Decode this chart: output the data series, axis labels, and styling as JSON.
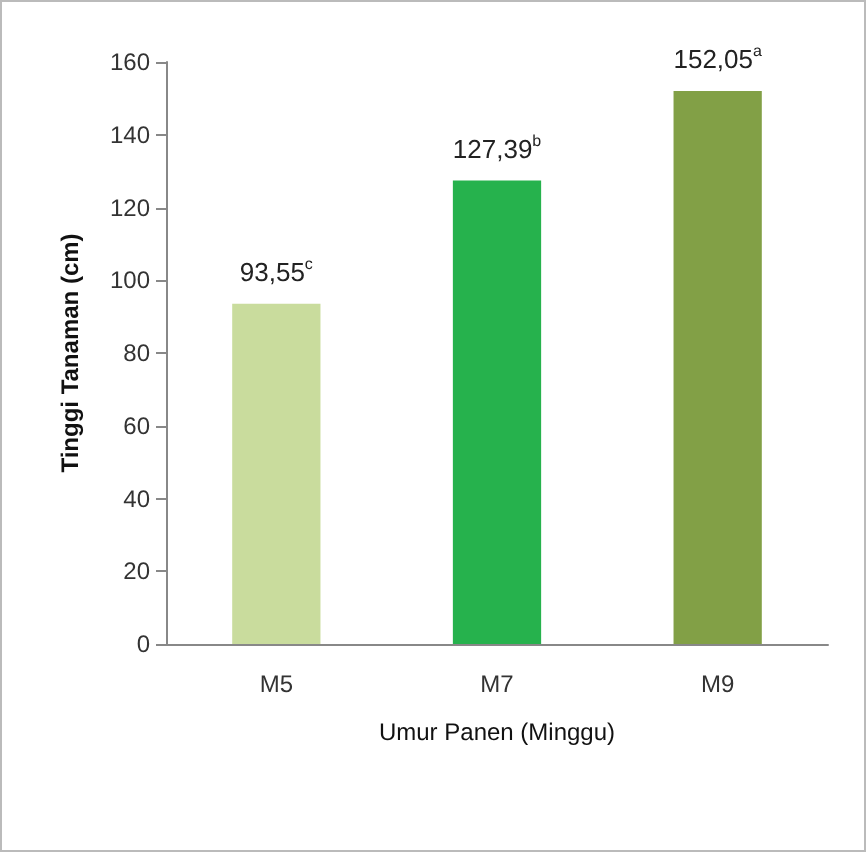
{
  "chart_data": {
    "type": "bar",
    "xlabel": "Umur Panen (Minggu)",
    "ylabel": "Tinggi Tanaman (cm)",
    "categories": [
      "M5",
      "M7",
      "M9"
    ],
    "values": [
      93.55,
      127.39,
      152.05
    ],
    "colors": [
      "#c9dc9d",
      "#26b24d",
      "#82a046"
    ],
    "value_labels": [
      "93,55$^{c}$",
      "127,39$^{b}$",
      "152,05$^{a}$"
    ],
    "ylim": [
      0,
      160
    ],
    "yticks": [
      0,
      20,
      40,
      60,
      80,
      100,
      120,
      140,
      160
    ],
    "grid": false
  }
}
